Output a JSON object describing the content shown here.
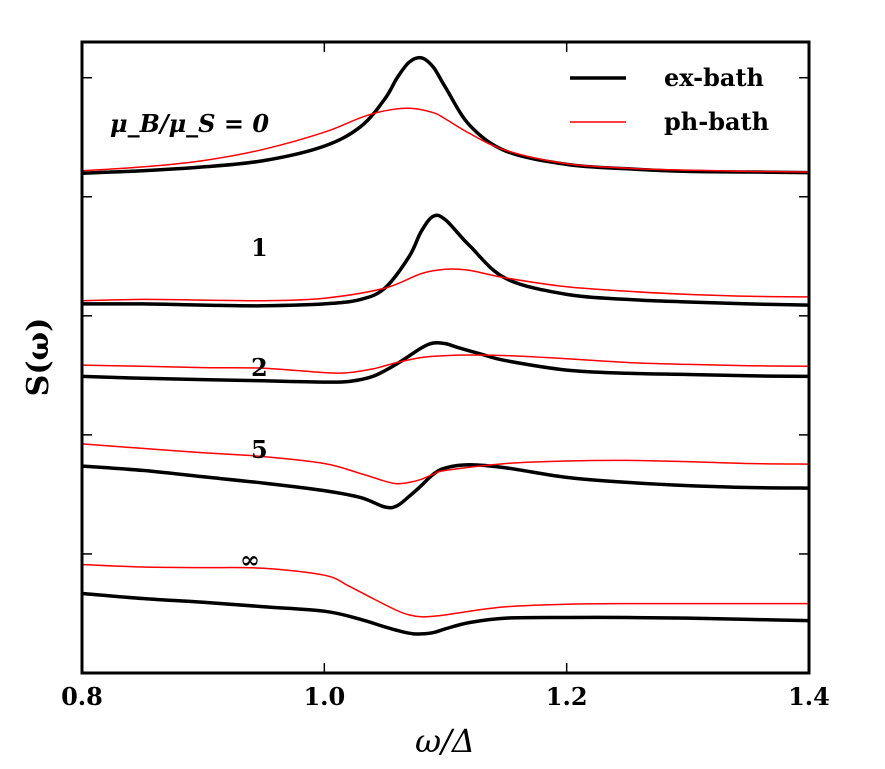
{
  "chart_data": {
    "type": "line",
    "xlabel": "ω/Δ",
    "ylabel": "S(ω)",
    "xlim": [
      0.8,
      1.4
    ],
    "ylim": [
      0,
      1
    ],
    "xticks": [
      "0.8",
      "1.0",
      "1.2",
      "1.4"
    ],
    "xtick_values": [
      0.8,
      1.0,
      1.2,
      1.4
    ],
    "grid": false,
    "legend_position": "top-right",
    "legend": [
      {
        "label": "ex-bath",
        "color": "#000000"
      },
      {
        "label": "ph-bath",
        "color": "#ff0000"
      }
    ],
    "curve_labels": [
      "μ_B/μ_S = 0",
      "1",
      "2",
      "5",
      "∞"
    ],
    "series": [
      {
        "name": "ex-bath",
        "group": "0",
        "x": [
          0.8,
          0.85,
          0.9,
          0.95,
          1.0,
          1.03,
          1.05,
          1.06,
          1.07,
          1.08,
          1.09,
          1.1,
          1.12,
          1.15,
          1.2,
          1.25,
          1.3,
          1.35,
          1.4
        ],
        "y": [
          0.792,
          0.796,
          0.802,
          0.812,
          0.835,
          0.866,
          0.91,
          0.943,
          0.968,
          0.975,
          0.96,
          0.928,
          0.868,
          0.827,
          0.806,
          0.799,
          0.795,
          0.794,
          0.793
        ]
      },
      {
        "name": "ph-bath",
        "group": "0",
        "x": [
          0.8,
          0.85,
          0.9,
          0.95,
          1.0,
          1.03,
          1.05,
          1.07,
          1.09,
          1.1,
          1.12,
          1.15,
          1.2,
          1.25,
          1.3,
          1.35,
          1.4
        ],
        "y": [
          0.796,
          0.802,
          0.812,
          0.83,
          0.857,
          0.88,
          0.891,
          0.895,
          0.888,
          0.878,
          0.855,
          0.828,
          0.807,
          0.8,
          0.797,
          0.795,
          0.794
        ]
      },
      {
        "name": "ex-bath",
        "group": "1",
        "x": [
          0.8,
          0.85,
          0.9,
          0.95,
          1.0,
          1.03,
          1.05,
          1.07,
          1.08,
          1.09,
          1.1,
          1.12,
          1.15,
          1.2,
          1.25,
          1.3,
          1.35,
          1.4
        ],
        "y": [
          0.585,
          0.585,
          0.583,
          0.582,
          0.585,
          0.592,
          0.61,
          0.66,
          0.7,
          0.724,
          0.718,
          0.677,
          0.625,
          0.6,
          0.592,
          0.588,
          0.585,
          0.583
        ]
      },
      {
        "name": "ph-bath",
        "group": "1",
        "x": [
          0.8,
          0.85,
          0.9,
          0.95,
          1.0,
          1.05,
          1.08,
          1.1,
          1.12,
          1.15,
          1.2,
          1.25,
          1.3,
          1.35,
          1.4
        ],
        "y": [
          0.59,
          0.592,
          0.591,
          0.59,
          0.594,
          0.61,
          0.633,
          0.64,
          0.638,
          0.626,
          0.612,
          0.605,
          0.6,
          0.597,
          0.596
        ]
      },
      {
        "name": "ex-bath",
        "group": "2",
        "x": [
          0.8,
          0.85,
          0.9,
          0.95,
          1.0,
          1.02,
          1.04,
          1.06,
          1.08,
          1.09,
          1.1,
          1.11,
          1.13,
          1.15,
          1.2,
          1.25,
          1.3,
          1.35,
          1.4
        ],
        "y": [
          0.47,
          0.467,
          0.465,
          0.463,
          0.461,
          0.462,
          0.47,
          0.49,
          0.515,
          0.523,
          0.522,
          0.516,
          0.505,
          0.495,
          0.48,
          0.475,
          0.473,
          0.471,
          0.47
        ]
      },
      {
        "name": "ph-bath",
        "group": "2",
        "x": [
          0.8,
          0.85,
          0.9,
          0.95,
          1.0,
          1.02,
          1.04,
          1.06,
          1.08,
          1.1,
          1.12,
          1.15,
          1.2,
          1.25,
          1.3,
          1.35,
          1.4
        ],
        "y": [
          0.488,
          0.486,
          0.484,
          0.483,
          0.476,
          0.476,
          0.482,
          0.492,
          0.5,
          0.503,
          0.504,
          0.503,
          0.498,
          0.492,
          0.489,
          0.487,
          0.486
        ]
      },
      {
        "name": "ex-bath",
        "group": "5",
        "x": [
          0.8,
          0.85,
          0.9,
          0.95,
          1.0,
          1.03,
          1.05,
          1.06,
          1.07,
          1.08,
          1.09,
          1.1,
          1.12,
          1.15,
          1.2,
          1.25,
          1.3,
          1.35,
          1.4
        ],
        "y": [
          0.328,
          0.321,
          0.311,
          0.301,
          0.289,
          0.278,
          0.263,
          0.265,
          0.28,
          0.297,
          0.315,
          0.325,
          0.33,
          0.325,
          0.31,
          0.302,
          0.297,
          0.294,
          0.293
        ]
      },
      {
        "name": "ph-bath",
        "group": "5",
        "x": [
          0.8,
          0.85,
          0.9,
          0.95,
          1.0,
          1.03,
          1.05,
          1.06,
          1.07,
          1.08,
          1.09,
          1.1,
          1.15,
          1.2,
          1.25,
          1.3,
          1.35,
          1.4
        ],
        "y": [
          0.363,
          0.356,
          0.349,
          0.343,
          0.332,
          0.316,
          0.304,
          0.3,
          0.302,
          0.307,
          0.315,
          0.321,
          0.332,
          0.336,
          0.337,
          0.335,
          0.332,
          0.331
        ]
      },
      {
        "name": "ex-bath",
        "group": "∞",
        "x": [
          0.8,
          0.85,
          0.9,
          0.95,
          1.0,
          1.03,
          1.05,
          1.07,
          1.08,
          1.09,
          1.1,
          1.12,
          1.15,
          1.2,
          1.25,
          1.3,
          1.35,
          1.4
        ],
        "y": [
          0.126,
          0.118,
          0.112,
          0.105,
          0.098,
          0.085,
          0.073,
          0.063,
          0.062,
          0.064,
          0.07,
          0.08,
          0.087,
          0.088,
          0.088,
          0.087,
          0.085,
          0.083
        ]
      },
      {
        "name": "ph-bath",
        "group": "∞",
        "x": [
          0.8,
          0.85,
          0.9,
          0.95,
          1.0,
          1.02,
          1.04,
          1.06,
          1.07,
          1.08,
          1.09,
          1.1,
          1.12,
          1.15,
          1.2,
          1.25,
          1.3,
          1.35,
          1.4
        ],
        "y": [
          0.172,
          0.168,
          0.167,
          0.166,
          0.155,
          0.138,
          0.118,
          0.099,
          0.092,
          0.089,
          0.09,
          0.092,
          0.098,
          0.105,
          0.109,
          0.11,
          0.11,
          0.11,
          0.11
        ]
      }
    ]
  }
}
